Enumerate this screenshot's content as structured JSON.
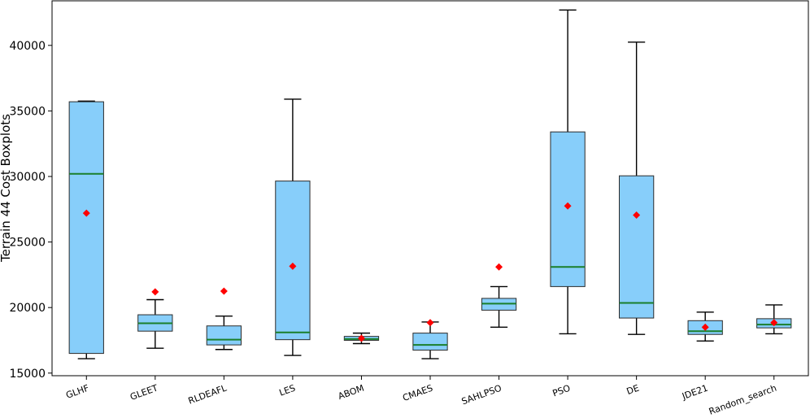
{
  "chart_data": {
    "type": "boxplot",
    "title": "",
    "xlabel": "",
    "ylabel": "Terrain 44 Cost Boxplots",
    "ylim": [
      14800,
      43400
    ],
    "yticks": [
      15000,
      20000,
      25000,
      30000,
      35000,
      40000
    ],
    "ytick_labels": [
      "15000",
      "20000",
      "25000",
      "30000",
      "35000",
      "40000"
    ],
    "grid": false,
    "colors": {
      "box_fill": "#87cefa",
      "box_edge": "#2b2b2b",
      "median": "#1a7f2b",
      "mean_marker": "#ff0000"
    },
    "categories": [
      "GLHF",
      "GLEET",
      "RLDEAFL",
      "LES",
      "ABOM",
      "CMAES",
      "SAHLPSO",
      "PSO",
      "DE",
      "JDE21",
      "Random_search"
    ],
    "boxes": [
      {
        "name": "GLHF",
        "whislo": 16100,
        "q1": 16500,
        "med": 30200,
        "q3": 35700,
        "whishi": 35750,
        "mean": 27200
      },
      {
        "name": "GLEET",
        "whislo": 16900,
        "q1": 18200,
        "med": 18800,
        "q3": 19450,
        "whishi": 20600,
        "mean": 21200
      },
      {
        "name": "RLDEAFL",
        "whislo": 16800,
        "q1": 17150,
        "med": 17550,
        "q3": 18600,
        "whishi": 19350,
        "mean": 21250
      },
      {
        "name": "LES",
        "whislo": 16350,
        "q1": 17550,
        "med": 18100,
        "q3": 29650,
        "whishi": 35900,
        "mean": 23150
      },
      {
        "name": "ABOM",
        "whislo": 17250,
        "q1": 17500,
        "med": 17600,
        "q3": 17800,
        "whishi": 18050,
        "mean": 17650
      },
      {
        "name": "CMAES",
        "whislo": 16100,
        "q1": 16750,
        "med": 17150,
        "q3": 18050,
        "whishi": 18900,
        "mean": 18850
      },
      {
        "name": "SAHLPSO",
        "whislo": 18500,
        "q1": 19800,
        "med": 20300,
        "q3": 20700,
        "whishi": 21600,
        "mean": 23100
      },
      {
        "name": "PSO",
        "whislo": 18000,
        "q1": 21600,
        "med": 23100,
        "q3": 33400,
        "whishi": 42700,
        "mean": 27750
      },
      {
        "name": "DE",
        "whislo": 17950,
        "q1": 19200,
        "med": 20350,
        "q3": 30050,
        "whishi": 40250,
        "mean": 27050
      },
      {
        "name": "JDE21",
        "whislo": 17450,
        "q1": 17950,
        "med": 18200,
        "q3": 19000,
        "whishi": 19650,
        "mean": 18500
      },
      {
        "name": "Random_search",
        "whislo": 18000,
        "q1": 18450,
        "med": 18700,
        "q3": 19150,
        "whishi": 20200,
        "mean": 18850
      }
    ]
  }
}
